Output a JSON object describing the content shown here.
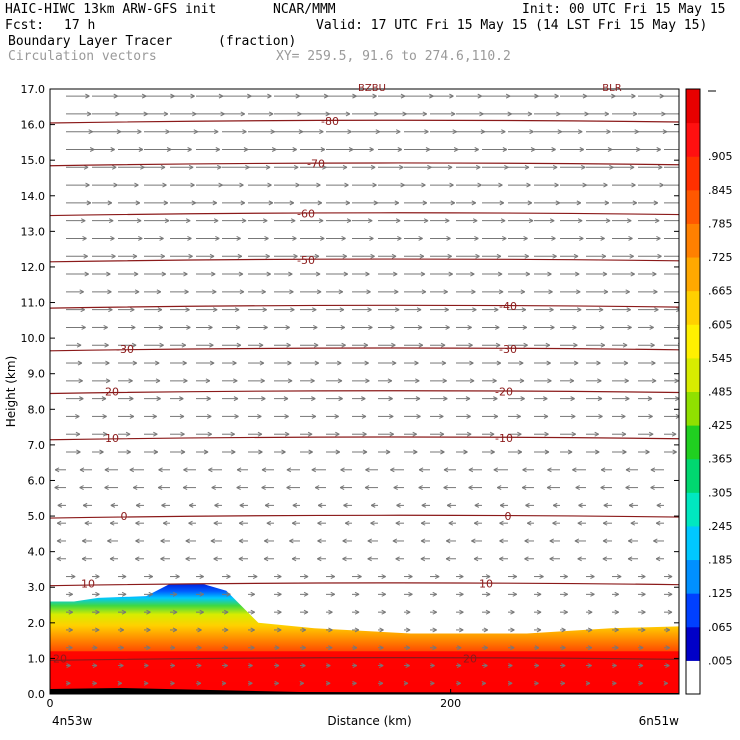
{
  "header": {
    "model": "HAIC-HIWC 13km ARW-GFS init",
    "org": "NCAR/MMM",
    "init": "Init: 00 UTC Fri 15 May 15",
    "fcst_label": "Fcst:",
    "fcst_value": "17 h",
    "valid": "Valid: 17 UTC Fri 15 May 15 (14 LST Fri 15 May 15)",
    "field": "Boundary Layer Tracer",
    "units": "(fraction)",
    "vectors": "Circulation vectors",
    "xy": "XY= 259.5, 91.6 to 274.6,110.2"
  },
  "chart_data": {
    "type": "cross-section",
    "ylabel": "Height (km)",
    "xlabel": "Distance (km)",
    "x_left_label": "4n53w",
    "x_right_label": "6n51w",
    "ylim": [
      0,
      17
    ],
    "yticks": [
      "0.0",
      "1.0",
      "2.0",
      "3.0",
      "4.0",
      "5.0",
      "6.0",
      "7.0",
      "8.0",
      "9.0",
      "10.0",
      "11.0",
      "12.0",
      "13.0",
      "14.0",
      "15.0",
      "16.0",
      "17.0"
    ],
    "xlim": [
      0,
      314
    ],
    "xticks": [
      {
        "value": 0,
        "label": "0"
      },
      {
        "value": 200,
        "label": "200"
      }
    ],
    "top_labels": [
      "BZBU",
      "BLR"
    ],
    "colorbar": {
      "labels": [
        ".005",
        ".065",
        ".125",
        ".185",
        ".245",
        ".305",
        ".365",
        ".425",
        ".485",
        ".545",
        ".605",
        ".665",
        ".725",
        ".785",
        ".845",
        ".905"
      ],
      "colors": [
        "#0000c8",
        "#0040ff",
        "#0090ff",
        "#00c8ff",
        "#00e8c0",
        "#00d870",
        "#20d020",
        "#90e000",
        "#d8ec00",
        "#fff000",
        "#ffd000",
        "#ffa800",
        "#ff8000",
        "#ff5800",
        "#ff3000",
        "#ff1010",
        "#e80000"
      ]
    },
    "isotherms": [
      {
        "label": "-80",
        "y": 16.1
      },
      {
        "label": "-70",
        "y": 14.9
      },
      {
        "label": "-60",
        "y": 13.5
      },
      {
        "label": "-50",
        "y": 12.2
      },
      {
        "label": "-40",
        "y": 10.9
      },
      {
        "label": "-30",
        "y": 9.7
      },
      {
        "label": "-20",
        "y": 8.5
      },
      {
        "label": "-10",
        "y": 7.2
      },
      {
        "label": "0",
        "y": 5.0
      },
      {
        "label": "10",
        "y": 3.1
      },
      {
        "label": "20",
        "y": 1.0
      }
    ],
    "tracer_top_km": [
      [
        0,
        2.6
      ],
      [
        12,
        2.6
      ],
      [
        24,
        2.7
      ],
      [
        48,
        2.75
      ],
      [
        60,
        3.1
      ],
      [
        76,
        3.1
      ],
      [
        88,
        2.9
      ],
      [
        104,
        2.0
      ],
      [
        132,
        1.85
      ],
      [
        180,
        1.7
      ],
      [
        238,
        1.7
      ],
      [
        280,
        1.85
      ],
      [
        314,
        1.9
      ]
    ]
  }
}
